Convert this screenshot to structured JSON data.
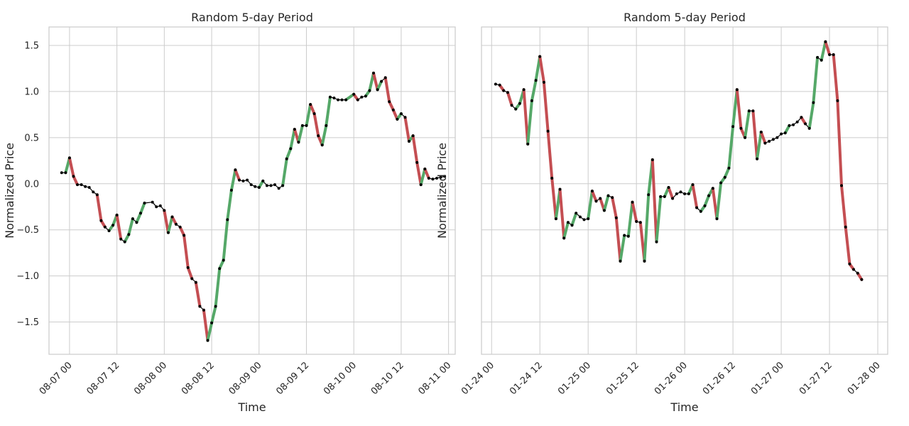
{
  "chart_data": [
    {
      "type": "line",
      "title": "Random 5-day Period",
      "xlabel": "Time",
      "ylabel": "Normalized Price",
      "xlim": [
        "2000-08-06 18:48",
        "2000-08-11 01:41"
      ],
      "ylim": [
        -1.85,
        1.7
      ],
      "grid": true,
      "x_ticks": [
        "08-07 00",
        "08-07 12",
        "08-08 00",
        "08-08 12",
        "08-09 00",
        "08-09 12",
        "08-10 00",
        "08-10 12",
        "08-11 00"
      ],
      "y_ticks": [
        "1.5",
        "1.0",
        "0.5",
        "0.0",
        "−0.5",
        "−1.0",
        "−1.5"
      ],
      "segment_colors": {
        "up": "#55a868",
        "down": "#c44e52",
        "neutral": "#000000"
      },
      "series": [
        {
          "x": [
            "2000-08-06 22:00",
            "2000-08-06 23:00",
            "2000-08-07 00:00",
            "2000-08-07 01:00",
            "2000-08-07 02:00",
            "2000-08-07 03:00",
            "2000-08-07 04:00",
            "2000-08-07 05:00",
            "2000-08-07 06:00",
            "2000-08-07 07:00",
            "2000-08-07 08:00",
            "2000-08-07 09:00",
            "2000-08-07 10:00",
            "2000-08-07 11:00",
            "2000-08-07 12:00",
            "2000-08-07 13:00",
            "2000-08-07 14:00",
            "2000-08-07 15:00",
            "2000-08-07 16:00",
            "2000-08-07 17:00",
            "2000-08-07 18:00",
            "2000-08-07 19:00",
            "2000-08-07 21:00",
            "2000-08-07 22:00",
            "2000-08-07 23:00",
            "2000-08-08 00:00",
            "2000-08-08 01:00",
            "2000-08-08 02:00",
            "2000-08-08 03:00",
            "2000-08-08 04:00",
            "2000-08-08 05:00",
            "2000-08-08 06:00",
            "2000-08-08 07:00",
            "2000-08-08 08:00",
            "2000-08-08 09:00",
            "2000-08-08 10:00",
            "2000-08-08 11:00",
            "2000-08-08 12:00",
            "2000-08-08 13:00",
            "2000-08-08 14:00",
            "2000-08-08 15:00",
            "2000-08-08 16:00",
            "2000-08-08 17:00",
            "2000-08-08 18:00",
            "2000-08-08 19:00",
            "2000-08-08 20:00",
            "2000-08-08 21:00",
            "2000-08-08 22:00",
            "2000-08-08 23:00",
            "2000-08-09 00:00",
            "2000-08-09 01:00",
            "2000-08-09 02:00",
            "2000-08-09 03:00",
            "2000-08-09 04:00",
            "2000-08-09 05:00",
            "2000-08-09 06:00",
            "2000-08-09 07:00",
            "2000-08-09 08:00",
            "2000-08-09 09:00",
            "2000-08-09 10:00",
            "2000-08-09 11:00",
            "2000-08-09 12:00",
            "2000-08-09 13:00",
            "2000-08-09 14:00",
            "2000-08-09 15:00",
            "2000-08-09 16:00",
            "2000-08-09 17:00",
            "2000-08-09 18:00",
            "2000-08-09 19:00",
            "2000-08-09 20:00",
            "2000-08-09 21:00",
            "2000-08-09 22:00",
            "2000-08-10 00:00",
            "2000-08-10 01:00",
            "2000-08-10 02:00",
            "2000-08-10 03:00",
            "2000-08-10 04:00",
            "2000-08-10 05:00",
            "2000-08-10 06:00",
            "2000-08-10 07:00",
            "2000-08-10 08:00",
            "2000-08-10 09:00",
            "2000-08-10 10:00",
            "2000-08-10 11:00",
            "2000-08-10 12:00",
            "2000-08-10 13:00",
            "2000-08-10 14:00",
            "2000-08-10 15:00",
            "2000-08-10 16:00",
            "2000-08-10 17:00",
            "2000-08-10 18:00",
            "2000-08-10 19:00",
            "2000-08-10 20:00",
            "2000-08-10 21:00",
            "2000-08-10 22:00",
            "2000-08-10 23:00"
          ],
          "y": [
            0.12,
            0.12,
            0.28,
            0.08,
            -0.01,
            -0.01,
            -0.03,
            -0.04,
            -0.09,
            -0.12,
            -0.4,
            -0.47,
            -0.51,
            -0.45,
            -0.34,
            -0.6,
            -0.63,
            -0.55,
            -0.38,
            -0.42,
            -0.32,
            -0.21,
            -0.2,
            -0.25,
            -0.24,
            -0.29,
            -0.53,
            -0.36,
            -0.44,
            -0.47,
            -0.56,
            -0.91,
            -1.03,
            -1.07,
            -1.33,
            -1.37,
            -1.7,
            -1.51,
            -1.33,
            -0.92,
            -0.83,
            -0.39,
            -0.07,
            0.15,
            0.04,
            0.03,
            0.04,
            -0.01,
            -0.03,
            -0.04,
            0.03,
            -0.02,
            -0.02,
            -0.01,
            -0.05,
            -0.02,
            0.27,
            0.38,
            0.59,
            0.45,
            0.63,
            0.63,
            0.86,
            0.76,
            0.52,
            0.42,
            0.63,
            0.94,
            0.93,
            0.91,
            0.91,
            0.91,
            0.97,
            0.91,
            0.94,
            0.95,
            1.01,
            1.2,
            1.02,
            1.11,
            1.15,
            0.89,
            0.8,
            0.7,
            0.76,
            0.72,
            0.46,
            0.52,
            0.23,
            -0.01,
            0.16,
            0.06,
            0.05,
            0.06,
            0.07,
            0.08
          ]
        }
      ]
    },
    {
      "type": "line",
      "title": "Random 5-day Period",
      "xlabel": "Time",
      "ylabel": "Normalized Price",
      "xlim": [
        "2000-01-23 21:29",
        "2000-01-28 02:28"
      ],
      "ylim": [
        -1.85,
        1.7
      ],
      "grid": true,
      "x_ticks": [
        "01-24 00",
        "01-24 12",
        "01-25 00",
        "01-25 12",
        "01-26 00",
        "01-26 12",
        "01-27 00",
        "01-27 12",
        "01-28 00"
      ],
      "y_ticks": [
        "1.5",
        "1.0",
        "0.5",
        "0.0",
        "−0.5",
        "−1.0",
        "−1.5"
      ],
      "segment_colors": {
        "up": "#55a868",
        "down": "#c44e52",
        "neutral": "#000000"
      },
      "series": [
        {
          "x": [
            "2000-01-24 01:00",
            "2000-01-24 02:00",
            "2000-01-24 03:00",
            "2000-01-24 04:00",
            "2000-01-24 05:00",
            "2000-01-24 06:00",
            "2000-01-24 07:00",
            "2000-01-24 08:00",
            "2000-01-24 09:00",
            "2000-01-24 10:00",
            "2000-01-24 11:00",
            "2000-01-24 12:00",
            "2000-01-24 13:00",
            "2000-01-24 14:00",
            "2000-01-24 15:00",
            "2000-01-24 16:00",
            "2000-01-24 17:00",
            "2000-01-24 18:00",
            "2000-01-24 19:00",
            "2000-01-24 20:00",
            "2000-01-24 21:00",
            "2000-01-24 22:00",
            "2000-01-24 23:00",
            "2000-01-25 00:00",
            "2000-01-25 01:00",
            "2000-01-25 02:00",
            "2000-01-25 03:00",
            "2000-01-25 04:00",
            "2000-01-25 05:00",
            "2000-01-25 06:00",
            "2000-01-25 07:00",
            "2000-01-25 08:00",
            "2000-01-25 09:00",
            "2000-01-25 10:00",
            "2000-01-25 11:00",
            "2000-01-25 12:00",
            "2000-01-25 13:00",
            "2000-01-25 14:00",
            "2000-01-25 15:00",
            "2000-01-25 16:00",
            "2000-01-25 17:00",
            "2000-01-25 18:00",
            "2000-01-25 19:00",
            "2000-01-25 20:00",
            "2000-01-25 21:00",
            "2000-01-25 22:00",
            "2000-01-25 23:00",
            "2000-01-26 00:00",
            "2000-01-26 01:00",
            "2000-01-26 02:00",
            "2000-01-26 03:00",
            "2000-01-26 04:00",
            "2000-01-26 05:00",
            "2000-01-26 06:00",
            "2000-01-26 07:00",
            "2000-01-26 08:00",
            "2000-01-26 09:00",
            "2000-01-26 10:00",
            "2000-01-26 11:00",
            "2000-01-26 12:00",
            "2000-01-26 13:00",
            "2000-01-26 14:00",
            "2000-01-26 15:00",
            "2000-01-26 16:00",
            "2000-01-26 17:00",
            "2000-01-26 18:00",
            "2000-01-26 19:00",
            "2000-01-26 20:00",
            "2000-01-26 21:00",
            "2000-01-26 22:00",
            "2000-01-26 23:00",
            "2000-01-27 00:00",
            "2000-01-27 01:00",
            "2000-01-27 02:00",
            "2000-01-27 03:00",
            "2000-01-27 04:00",
            "2000-01-27 05:00",
            "2000-01-27 06:00",
            "2000-01-27 07:00",
            "2000-01-27 08:00",
            "2000-01-27 09:00",
            "2000-01-27 10:00",
            "2000-01-27 11:00",
            "2000-01-27 12:00",
            "2000-01-27 13:00",
            "2000-01-27 14:00",
            "2000-01-27 15:00",
            "2000-01-27 16:00",
            "2000-01-27 17:00",
            "2000-01-27 18:00",
            "2000-01-27 19:00",
            "2000-01-27 20:00"
          ],
          "y": [
            1.08,
            1.07,
            1.01,
            0.99,
            0.85,
            0.81,
            0.87,
            1.02,
            0.43,
            0.9,
            1.12,
            1.38,
            1.1,
            0.57,
            0.06,
            -0.38,
            -0.06,
            -0.59,
            -0.42,
            -0.45,
            -0.32,
            -0.36,
            -0.39,
            -0.38,
            -0.08,
            -0.19,
            -0.16,
            -0.29,
            -0.13,
            -0.15,
            -0.37,
            -0.84,
            -0.56,
            -0.57,
            -0.2,
            -0.41,
            -0.42,
            -0.84,
            -0.12,
            0.26,
            -0.63,
            -0.14,
            -0.14,
            -0.04,
            -0.16,
            -0.11,
            -0.09,
            -0.11,
            -0.11,
            -0.01,
            -0.26,
            -0.3,
            -0.24,
            -0.13,
            -0.05,
            -0.38,
            0.01,
            0.07,
            0.17,
            0.62,
            1.02,
            0.6,
            0.5,
            0.79,
            0.79,
            0.27,
            0.56,
            0.44,
            0.46,
            0.48,
            0.5,
            0.54,
            0.55,
            0.63,
            0.64,
            0.67,
            0.72,
            0.65,
            0.6,
            0.88,
            1.37,
            1.34,
            1.54,
            1.4,
            1.4,
            0.9,
            -0.02,
            -0.47,
            -0.87,
            -0.93,
            -0.97,
            -1.04
          ]
        }
      ]
    }
  ]
}
